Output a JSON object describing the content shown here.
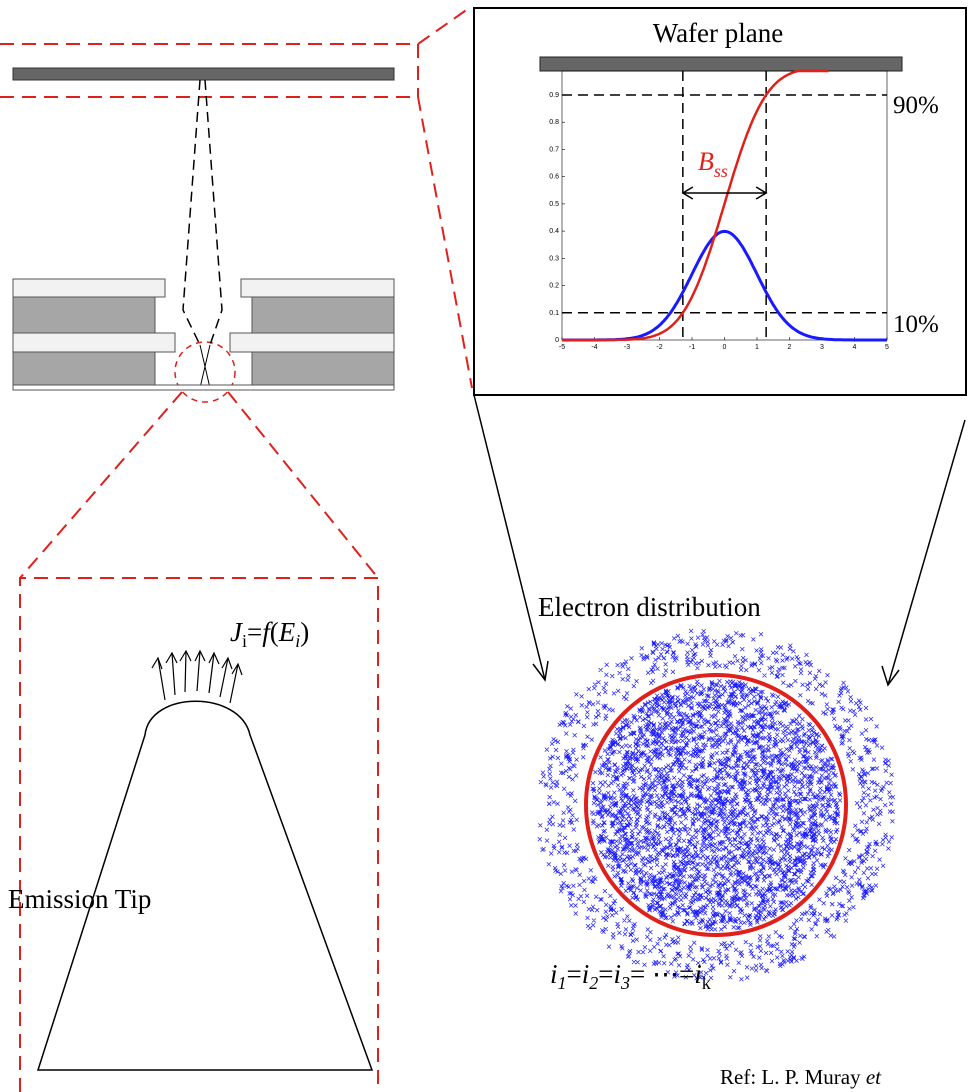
{
  "inset": {
    "title": "Wafer plane",
    "upper_label": "90%",
    "lower_label": "10%",
    "width_label": {
      "base": "B",
      "sub": "ss"
    },
    "xticks": [
      -5,
      -4,
      -3,
      -2,
      -1,
      0,
      1,
      2,
      3,
      4,
      5
    ],
    "yticks": [
      0,
      0.1,
      0.2,
      0.3,
      0.4,
      0.5,
      0.6,
      0.7,
      0.8,
      0.9
    ]
  },
  "distribution": {
    "title": "Electron distribution",
    "formula": [
      "i",
      "1",
      "=",
      "i",
      "2",
      "=",
      "i",
      "3",
      "= ⋯=",
      "i",
      "k"
    ]
  },
  "tip": {
    "label": "Emission Tip",
    "formula": [
      "J",
      "i",
      "=",
      "f",
      "(",
      "E",
      "i",
      ")"
    ]
  },
  "reference": {
    "text": "Ref: L. P. Muray ",
    "italic": "et"
  }
}
